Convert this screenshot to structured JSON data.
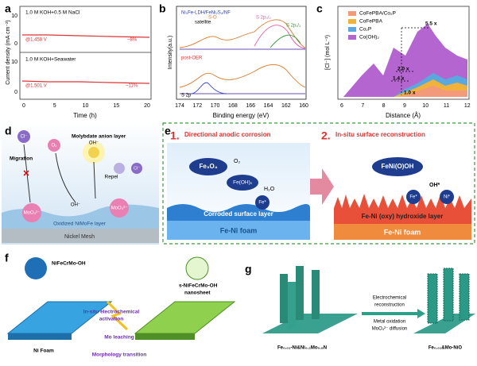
{
  "a": {
    "label": "a",
    "top_condition": "1.0 M KOH+0.5 M NaCl",
    "top_potential": "@1.458 V",
    "top_decay": "~8%",
    "bottom_condition": "1.0 M KOH+Seawater",
    "bottom_potential": "@1.501 V",
    "bottom_decay": "~11%",
    "y_label": "Current density (mA cm⁻²)",
    "x_label": "Time (h)",
    "x_ticks": [
      0,
      5,
      10,
      15,
      20
    ],
    "y_ticks_top": [
      10,
      0
    ],
    "y_ticks_bottom": [
      10,
      0
    ]
  },
  "b": {
    "label": "b",
    "title": "Ni₃Fe-LDH/FeNi₂S₄/NF",
    "satellite": "satellite",
    "s_o": "S-O",
    "s2p32": "S 2p₃/₂",
    "s2p12": "S 2p₁/₂",
    "post_oer": "post-OER",
    "s2p": "S 2p",
    "y_label": "Intensity(a.u.)",
    "x_label": "Binding energy (eV)",
    "x_ticks": [
      174,
      172,
      170,
      168,
      166,
      164,
      162,
      160
    ]
  },
  "c": {
    "label": "c",
    "y_label": "[Cl⁻] (mol L⁻¹)",
    "x_label": "Distance (Å)",
    "x_ticks": [
      6,
      7,
      8,
      9,
      10,
      11,
      12
    ],
    "legend": [
      "CoFePBA/Co₂P",
      "CoFePBA",
      "Co₂P",
      "Co(OH)₂"
    ],
    "ratios": [
      "5.5 x",
      "2.0 x",
      "1.4 x",
      "1.0 x"
    ]
  },
  "d": {
    "label": "d",
    "cl_top": "Cl⁻",
    "migration": "Migration",
    "o2": "O₂",
    "molybdate": "Molybdate anion layer",
    "oh_top": "OH⁻",
    "repel": "Repel",
    "cl_right": "Cl⁻",
    "moo4_left": "MoO₄²⁻",
    "oh_center": "OH⁻",
    "moo4_right": "MoO₄²⁻",
    "oxidized_layer": "Oxidized NiMoFe layer",
    "nickel_mesh": "Nickel Mesh"
  },
  "e": {
    "label": "e",
    "step1_number": "1.",
    "step1": "Directional anodic corrosion",
    "step2_number": "2.",
    "step2": "In-situ surface reconstruction",
    "fe3o4": "Fe₃O₄",
    "o2": "O₂",
    "feoh": "Fe(OH)ₓ",
    "h2o": "H₂O",
    "fe_left": "Fe*",
    "corroded": "Corroded surface layer",
    "foam_left": "Fe-Ni foam",
    "feniooh": "FeNi(O)OH",
    "oh": "OH*",
    "fe_right": "Fe*",
    "ni": "Ni*",
    "hydroxide": "Fe-Ni (oxy) hydroxide layer",
    "foam_right": "Fe-Ni foam"
  },
  "f": {
    "label": "f",
    "precursor": "NiFeCrMo-OH",
    "product_line1": "s-NiFeCrMo-OH",
    "product_line2": "nanosheet",
    "activation_line1": "In-situ electrochemical",
    "activation_line2": "activation",
    "mo_leaching": "Mo  leaching",
    "morphology": "Morphology transition",
    "ni_foam": "Ni Foam"
  },
  "g": {
    "label": "g",
    "step_line1": "Electrochemical",
    "step_line2": "reconstruction",
    "oxidation": "Metal oxidation",
    "diffusion": "MoO₄²⁻ diffusion",
    "precursor": "Fe₀.₀₁-Ni&Ni₀.₂Mo₀.₈N",
    "product": "Fe₀.₀₁&Mo-NiO"
  }
}
